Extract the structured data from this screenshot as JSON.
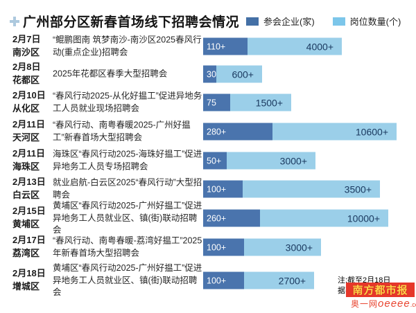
{
  "header": {
    "title": "广州部分区新春首场线下招聘会情况",
    "title_icon": "plus-icon"
  },
  "legend": {
    "items": [
      {
        "label": "参会企业(家)",
        "color": "#4470a6"
      },
      {
        "label": "岗位数量(个)",
        "color": "#7cc6ea"
      }
    ]
  },
  "colors": {
    "bar_dark": "#4a74ad",
    "bar_light": "#9bcfe9",
    "bar_dark_label": "#ffffff",
    "bar_light_label": "#1b3a60",
    "brand_bg": "#e6372a",
    "brand_text": "#ffd54a",
    "site_text": "#e8442f"
  },
  "rows": [
    {
      "date": "2月7日",
      "district": "南沙区",
      "desc": "“鲲鹏图南 筑梦南沙-南沙区2025春风行动(重点企业)招聘会",
      "companies": "110+",
      "positions": "4000+",
      "dark_w": 64,
      "light_w": 136,
      "top": 67
    },
    {
      "date": "2月8日",
      "district": "花都区",
      "desc": "2025年花都区春季大型招聘会",
      "companies": "30",
      "positions": "600+",
      "dark_w": 19,
      "light_w": 66,
      "top": 107
    },
    {
      "date": "2月10日",
      "district": "从化区",
      "desc": "“春风行动2025-从化好揾工”促进异地务工人员就业现场招聘会",
      "companies": "75",
      "positions": "1500+",
      "dark_w": 39,
      "light_w": 88,
      "top": 148
    },
    {
      "date": "2月11日",
      "district": "天河区",
      "desc": "“春风行动、南粤春暖2025-广州好揾工”新春首场大型招聘会",
      "companies": "280+",
      "positions": "10600+",
      "dark_w": 100,
      "light_w": 179,
      "top": 190
    },
    {
      "date": "2月11日",
      "district": "海珠区",
      "desc": "海珠区“春风行动2025-海珠好揾工”促进异地务工人员专场招聘会",
      "companies": "50+",
      "positions": "3000+",
      "dark_w": 34,
      "light_w": 128,
      "top": 232
    },
    {
      "date": "2月13日",
      "district": "白云区",
      "desc": "就业启航-白云区2025“春风行动”大型招聘会",
      "companies": "100+",
      "positions": "3500+",
      "dark_w": 57,
      "light_w": 198,
      "top": 273
    },
    {
      "date": "2月15日",
      "district": "黄埔区",
      "desc": "黄埔区“春风行动2025-广州好揾工”促进异地务工人员就业区、镇(街)联动招聘会",
      "companies": "260+",
      "positions": "10000+",
      "dark_w": 82,
      "light_w": 185,
      "top": 315
    },
    {
      "date": "2月17日",
      "district": "荔湾区",
      "desc": "“春风行动、南粤春暖-荔湾好揾工”2025年新春首场大型招聘会",
      "companies": "100+",
      "positions": "3000+",
      "dark_w": 59,
      "light_w": 111,
      "top": 357
    },
    {
      "date": "2月18日",
      "district": "增城区",
      "desc": "黄埔区“春风行动2025-广州好揾工”促进异地务工人员就业区、镇(街)联动招聘会",
      "companies": "100+",
      "positions": "2700+",
      "dark_w": 59,
      "light_w": 101,
      "top": 405
    }
  ],
  "footer": {
    "note_line1": "注:截至2月18日",
    "note_line2": "据不",
    "brand": "南方都市报",
    "site_cn": "奥一网",
    "site_oe": "oeeee",
    "site_dm": ".com"
  },
  "chart_data": {
    "type": "bar",
    "orientation": "horizontal",
    "title": "广州部分区新春首场线下招聘会情况",
    "categories": [
      "南沙区(2月7日)",
      "花都区(2月8日)",
      "从化区(2月10日)",
      "天河区(2月11日)",
      "海珠区(2月11日)",
      "白云区(2月13日)",
      "黄埔区(2月15日)",
      "荔湾区(2月17日)",
      "增城区(2月18日)"
    ],
    "series": [
      {
        "name": "参会企业(家)",
        "values": [
          110,
          30,
          75,
          280,
          50,
          100,
          260,
          100,
          100
        ],
        "labels": [
          "110+",
          "30",
          "75",
          "280+",
          "50+",
          "100+",
          "260+",
          "100+",
          "100+"
        ],
        "color": "#4a74ad"
      },
      {
        "name": "岗位数量(个)",
        "values": [
          4000,
          600,
          1500,
          10600,
          3000,
          3500,
          10000,
          3000,
          2700
        ],
        "labels": [
          "4000+",
          "600+",
          "1500+",
          "10600+",
          "3000+",
          "3500+",
          "10000+",
          "3000+",
          "2700+"
        ],
        "color": "#9bcfe9"
      }
    ],
    "legend_position": "top-right",
    "grid": false,
    "notes": "注:截至2月18日 据不(被标识遮挡)"
  }
}
